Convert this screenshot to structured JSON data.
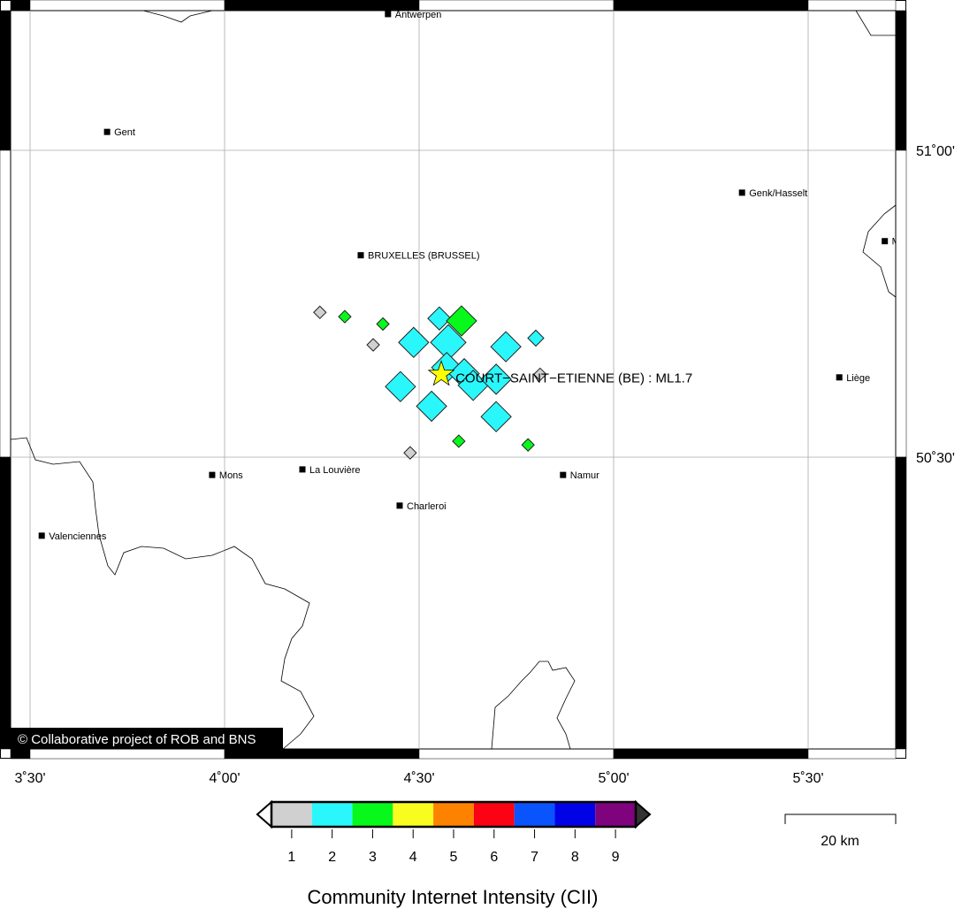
{
  "map": {
    "lon_range": [
      3.45,
      5.725
    ],
    "lat_range": [
      50.03,
      51.24
    ],
    "lon_ticks": [
      {
        "value": 3.5,
        "label": "3˚30'"
      },
      {
        "value": 4.0,
        "label": "4˚00'"
      },
      {
        "value": 4.5,
        "label": "4˚30'"
      },
      {
        "value": 5.0,
        "label": "5˚00'"
      },
      {
        "value": 5.5,
        "label": "5˚30'"
      }
    ],
    "lat_ticks": [
      {
        "value": 51.0,
        "label": "51˚00'"
      },
      {
        "value": 50.5,
        "label": "50˚30'"
      }
    ],
    "grid": true,
    "copyright": "© Collaborative project of ROB and BNS",
    "scale_bar_label": "20 km"
  },
  "epicenter": {
    "label": "COURT−SAINT−ETIENNE (BE) : ML1.7",
    "lon": 4.557,
    "lat": 50.635,
    "color": "#ffff00",
    "icon": "star-icon"
  },
  "cities": [
    {
      "name": "Antwerpen",
      "lon": 4.42,
      "lat": 51.222
    },
    {
      "name": "Gent",
      "lon": 3.698,
      "lat": 51.03
    },
    {
      "name": "Genk/Hasselt",
      "lon": 5.33,
      "lat": 50.931
    },
    {
      "name": "BRUXELLES (BRUSSEL)",
      "lon": 4.35,
      "lat": 50.829
    },
    {
      "name": "M",
      "lon": 5.697,
      "lat": 50.852
    },
    {
      "name": "Liège",
      "lon": 5.58,
      "lat": 50.63
    },
    {
      "name": "Mons",
      "lon": 3.968,
      "lat": 50.471
    },
    {
      "name": "La Louvière",
      "lon": 4.2,
      "lat": 50.48
    },
    {
      "name": "Charleroi",
      "lon": 4.45,
      "lat": 50.421
    },
    {
      "name": "Namur",
      "lon": 4.87,
      "lat": 50.471
    },
    {
      "name": "Valenciennes",
      "lon": 3.53,
      "lat": 50.372
    }
  ],
  "reports": [
    {
      "lon": 4.245,
      "lat": 50.736,
      "cii": 1,
      "size": "small"
    },
    {
      "lon": 4.309,
      "lat": 50.729,
      "cii": 3,
      "size": "small"
    },
    {
      "lon": 4.407,
      "lat": 50.717,
      "cii": 3,
      "size": "small"
    },
    {
      "lon": 4.382,
      "lat": 50.683,
      "cii": 1,
      "size": "small"
    },
    {
      "lon": 4.552,
      "lat": 50.726,
      "cii": 2,
      "size": "medium"
    },
    {
      "lon": 4.609,
      "lat": 50.722,
      "cii": 3,
      "size": "large"
    },
    {
      "lon": 4.486,
      "lat": 50.687,
      "cii": 2,
      "size": "large"
    },
    {
      "lon": 4.575,
      "lat": 50.687,
      "cii": 2,
      "size": "xlarge"
    },
    {
      "lon": 4.723,
      "lat": 50.68,
      "cii": 2,
      "size": "large"
    },
    {
      "lon": 4.8,
      "lat": 50.694,
      "cii": 2,
      "size": "small-medium"
    },
    {
      "lon": 4.571,
      "lat": 50.646,
      "cii": 2,
      "size": "large"
    },
    {
      "lon": 4.616,
      "lat": 50.636,
      "cii": 2,
      "size": "large"
    },
    {
      "lon": 4.639,
      "lat": 50.617,
      "cii": 2,
      "size": "large"
    },
    {
      "lon": 4.698,
      "lat": 50.627,
      "cii": 2,
      "size": "large"
    },
    {
      "lon": 4.452,
      "lat": 50.615,
      "cii": 2,
      "size": "large"
    },
    {
      "lon": 4.532,
      "lat": 50.583,
      "cii": 2,
      "size": "large"
    },
    {
      "lon": 4.698,
      "lat": 50.566,
      "cii": 2,
      "size": "large"
    },
    {
      "lon": 4.811,
      "lat": 50.635,
      "cii": 1,
      "size": "small"
    },
    {
      "lon": 4.602,
      "lat": 50.526,
      "cii": 3,
      "size": "small"
    },
    {
      "lon": 4.78,
      "lat": 50.52,
      "cii": 3,
      "size": "small"
    },
    {
      "lon": 4.477,
      "lat": 50.507,
      "cii": 1,
      "size": "small"
    }
  ],
  "colorbar": {
    "title": "Community Internet Intensity (CII)",
    "levels": [
      {
        "label": "1",
        "color": "#d0d0d0"
      },
      {
        "label": "2",
        "color": "#2af7fb"
      },
      {
        "label": "3",
        "color": "#06f91a"
      },
      {
        "label": "4",
        "color": "#f9fc1f"
      },
      {
        "label": "5",
        "color": "#fd8200"
      },
      {
        "label": "6",
        "color": "#fb0214"
      },
      {
        "label": "7",
        "color": "#0a54fd"
      },
      {
        "label": "8",
        "color": "#0202e6"
      },
      {
        "label": "9",
        "color": "#7e037d"
      }
    ],
    "under_color": "#ffffff",
    "over_color": "#333333"
  }
}
